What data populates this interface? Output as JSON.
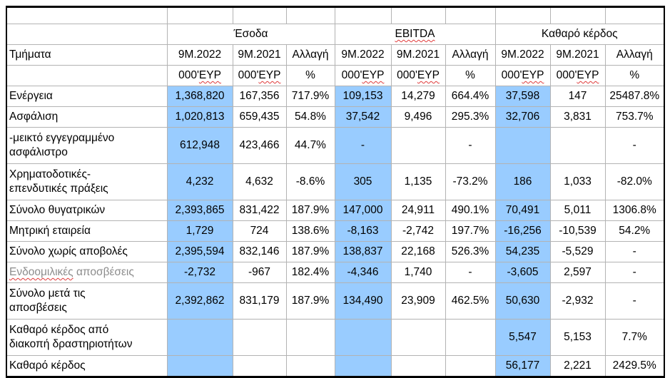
{
  "colors": {
    "highlight_column": "#99CCFF",
    "grid_line": "#B3B3B3",
    "outer_border": "#000000",
    "gray_row_text": "#8C8C8C",
    "spellcheck_squiggle": "#E03A3A"
  },
  "table": {
    "corner_label": "Τμήματα",
    "groups": [
      {
        "label": "Έσοδα",
        "misspelled": false
      },
      {
        "label": "EBITDA",
        "misspelled": true
      },
      {
        "label": "Καθαρό κέρδος",
        "misspelled": false
      }
    ],
    "period_headers": [
      "9Μ.2022",
      "9Μ.2021",
      "Αλλαγή"
    ],
    "unit_row": {
      "value_unit_prefix": "000'",
      "value_unit_word": "ΕΥΡ",
      "percent_symbol": "%"
    },
    "rows": [
      {
        "label": "Ενέργεια",
        "cells": [
          "1,368,820",
          "167,356",
          "717.9%",
          "109,153",
          "14,279",
          "664.4%",
          "37,598",
          "147",
          "25487.8%"
        ]
      },
      {
        "label": "Ασφάλιση",
        "cells": [
          "1,020,813",
          "659,435",
          "54.8%",
          "37,542",
          "9,496",
          "295.3%",
          "32,706",
          "3,831",
          "753.7%"
        ]
      },
      {
        "label": "-μεικτό εγγεγραμμένο\nασφάλιστρο",
        "cells": [
          "612,948",
          "423,466",
          "44.7%",
          "-",
          "",
          "-",
          "",
          "",
          "-"
        ]
      },
      {
        "label": "Χρηματοδοτικές-\nεπενδυτικές πράξεις",
        "cells": [
          "4,232",
          "4,632",
          "-8.6%",
          "305",
          "1,135",
          "-73.2%",
          "186",
          "1,033",
          "-82.0%"
        ]
      },
      {
        "label": "Σύνολο θυγατρικών",
        "cells": [
          "2,393,865",
          "831,422",
          "187.9%",
          "147,000",
          "24,911",
          "490.1%",
          "70,491",
          "5,011",
          "1306.8%"
        ]
      },
      {
        "label": "Μητρική εταιρεία",
        "cells": [
          "1,729",
          "724",
          "138.6%",
          "-8,163",
          "-2,742",
          "197.7%",
          "-16,256",
          "-10,539",
          "54.2%"
        ]
      },
      {
        "label": "Σύνολο χωρίς αποβολές",
        "cells": [
          "2,395,594",
          "832,146",
          "187.9%",
          "138,837",
          "22,168",
          "526.3%",
          "54,235",
          "-5,529",
          "-"
        ]
      },
      {
        "label": "Ενδοομιλικές αποσβέσεις",
        "gray": true,
        "label_head": "Ενδοομιλικές",
        "label_tail": " αποσβέσεις",
        "cells": [
          "-2,732",
          "-967",
          "182.4%",
          "-4,346",
          "1,740",
          "-",
          "-3,605",
          "2,597",
          "-"
        ]
      },
      {
        "label": "Σύνολο μετά τις\nαποσβέσεις",
        "cells": [
          "2,392,862",
          "831,179",
          "187.9%",
          "134,490",
          "23,909",
          "462.5%",
          "50,630",
          "-2,932",
          "-"
        ]
      },
      {
        "label": "Καθαρό κέρδος από\nδιακοπή δραστηριοτήτων",
        "cells": [
          "",
          "",
          "",
          "",
          "",
          "",
          "5,547",
          "5,153",
          "7.7%"
        ]
      },
      {
        "label": "Καθαρό κέρδος",
        "cells": [
          "",
          "",
          "",
          "",
          "",
          "",
          "56,177",
          "2,221",
          "2429.5%"
        ]
      }
    ]
  }
}
